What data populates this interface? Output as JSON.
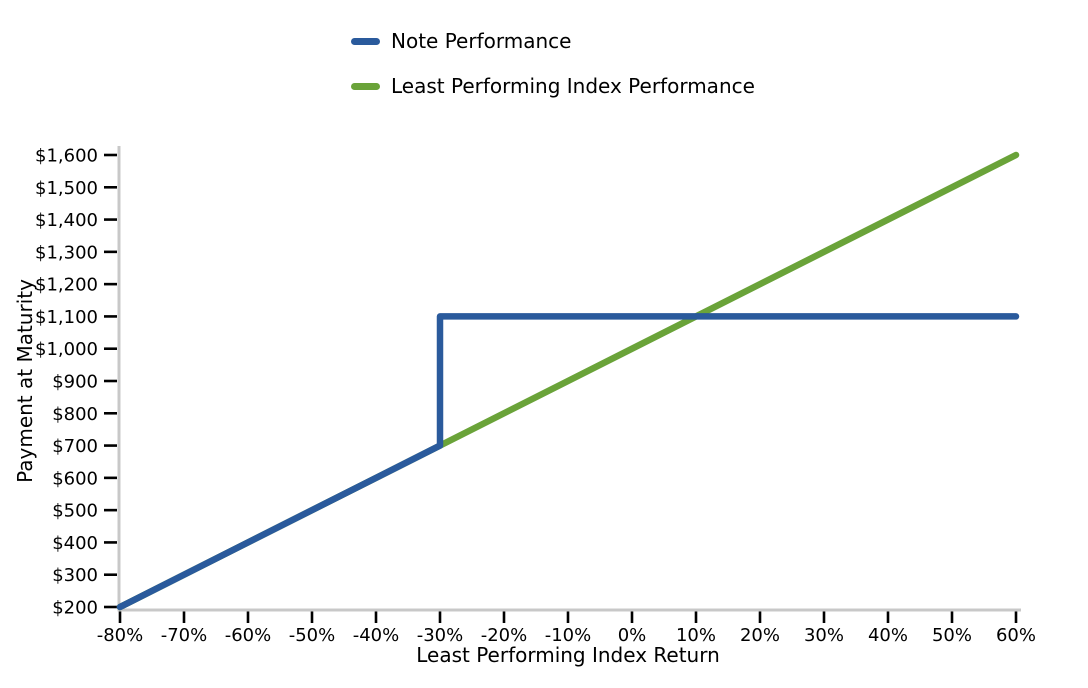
{
  "chart_data": {
    "type": "line",
    "title": "",
    "xlabel": "Least Performing Index Return",
    "ylabel": "Payment at Maturity",
    "xlim": [
      -80,
      60
    ],
    "ylim": [
      200,
      1600
    ],
    "x_ticks": [
      -80,
      -70,
      -60,
      -50,
      -40,
      -30,
      -20,
      -10,
      0,
      10,
      20,
      30,
      40,
      50,
      60
    ],
    "x_tick_labels": [
      "-80%",
      "-70%",
      "-60%",
      "-50%",
      "-40%",
      "-30%",
      "-20%",
      "-10%",
      "0%",
      "10%",
      "20%",
      "30%",
      "40%",
      "50%",
      "60%"
    ],
    "y_ticks": [
      200,
      300,
      400,
      500,
      600,
      700,
      800,
      900,
      1000,
      1100,
      1200,
      1300,
      1400,
      1500,
      1600
    ],
    "y_tick_labels": [
      "$200",
      "$300",
      "$400",
      "$500",
      "$600",
      "$700",
      "$800",
      "$900",
      "$1,000",
      "$1,100",
      "$1,200",
      "$1,300",
      "$1,400",
      "$1,500",
      "$1,600"
    ],
    "grid": false,
    "legend_position": "top",
    "axis_color": "#c8c8c8",
    "tick_mark_color": "#000000",
    "text_color": "#000000",
    "series": [
      {
        "name": "Note Performance",
        "color": "#2a5a9c",
        "points": [
          [
            -80,
            200
          ],
          [
            -30,
            700
          ],
          [
            -30,
            1100
          ],
          [
            60,
            1100
          ]
        ]
      },
      {
        "name": "Least Performing Index Performance",
        "color": "#6aa339",
        "points": [
          [
            -80,
            200
          ],
          [
            60,
            1600
          ]
        ]
      }
    ]
  }
}
